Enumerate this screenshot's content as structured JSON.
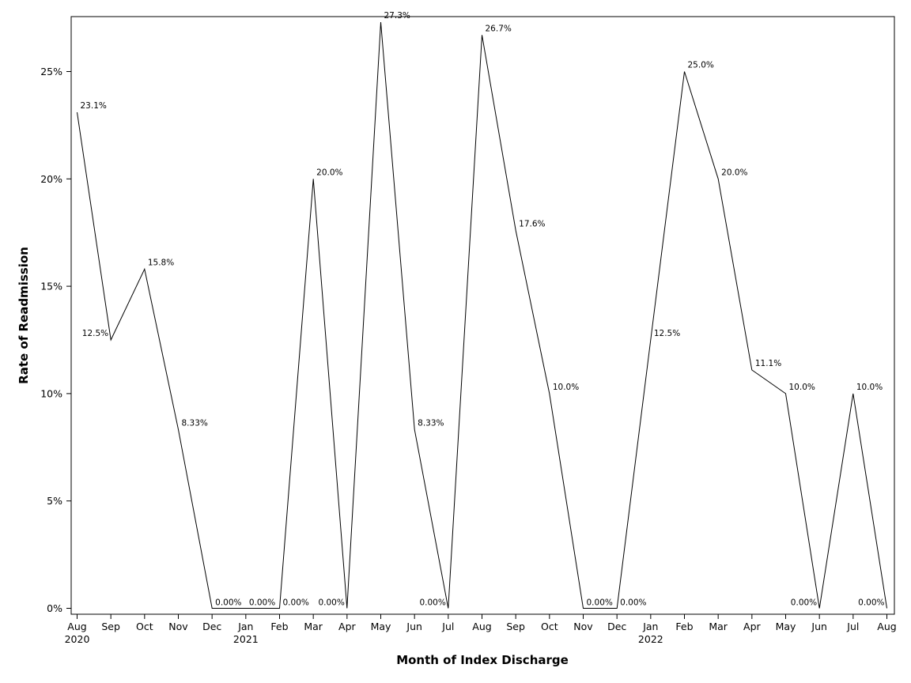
{
  "chart_data": {
    "type": "line",
    "xlabel": "Month of Index Discharge",
    "ylabel": "Rate of Readmission",
    "ylim": [
      0,
      0.275
    ],
    "y_ticks": [
      0,
      0.05,
      0.1,
      0.15,
      0.2,
      0.25
    ],
    "y_tick_labels": [
      "0%",
      "5%",
      "10%",
      "15%",
      "20%",
      "25%"
    ],
    "grid": false,
    "categories": [
      "Aug",
      "Sep",
      "Oct",
      "Nov",
      "Dec",
      "Jan",
      "Feb",
      "Mar",
      "Apr",
      "May",
      "Jun",
      "Jul",
      "Aug",
      "Sep",
      "Oct",
      "Nov",
      "Dec",
      "Jan",
      "Feb",
      "Mar",
      "Apr",
      "May",
      "Jun",
      "Jul",
      "Aug"
    ],
    "year_labels": [
      "2020",
      "",
      "",
      "",
      "",
      "2021",
      "",
      "",
      "",
      "",
      "",
      "",
      "",
      "",
      "",
      "",
      "",
      "2022",
      "",
      "",
      "",
      "",
      "",
      "",
      ""
    ],
    "x": [
      "2020-08",
      "2020-09",
      "2020-10",
      "2020-11",
      "2020-12",
      "2021-01",
      "2021-02",
      "2021-03",
      "2021-04",
      "2021-05",
      "2021-06",
      "2021-07",
      "2021-08",
      "2021-09",
      "2021-10",
      "2021-11",
      "2021-12",
      "2022-01",
      "2022-02",
      "2022-03",
      "2022-04",
      "2022-05",
      "2022-06",
      "2022-07",
      "2022-08"
    ],
    "values": [
      0.231,
      0.125,
      0.158,
      0.0833,
      0,
      0,
      0,
      0.2,
      0,
      0.273,
      0.0833,
      0,
      0.267,
      0.176,
      0.1,
      0,
      0,
      0.125,
      0.25,
      0.2,
      0.111,
      0.1,
      0,
      0.1,
      0
    ],
    "data_labels": [
      "23.1%",
      "12.5%",
      "15.8%",
      "8.33%",
      "0.00%",
      "0.00%",
      "0.00%",
      "20.0%",
      "0.00%",
      "27.3%",
      "8.33%",
      "0.00%",
      "26.7%",
      "17.6%",
      "10.0%",
      "0.00%",
      "0.00%",
      "12.5%",
      "25.0%",
      "20.0%",
      "11.1%",
      "10.0%",
      "0.00%",
      "10.0%",
      "0.00%"
    ]
  }
}
